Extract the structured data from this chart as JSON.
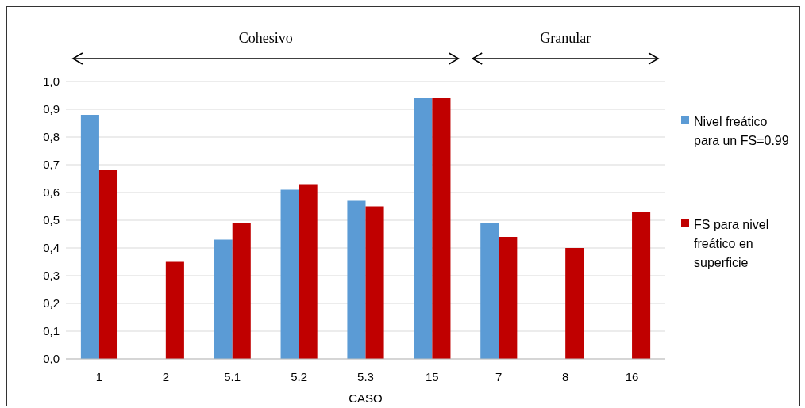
{
  "chart_data": {
    "type": "bar",
    "xlabel": "CASO",
    "categories": [
      "1",
      "2",
      "5.1",
      "5.2",
      "5.3",
      "15",
      "7",
      "8",
      "16"
    ],
    "series": [
      {
        "name": "Nivel freático para un FS=0.99",
        "color": "#5b9bd5",
        "values": [
          0.88,
          null,
          0.43,
          0.61,
          0.57,
          0.94,
          0.49,
          null,
          null
        ]
      },
      {
        "name": "FS para nivel freático en superficie",
        "color": "#c00000",
        "values": [
          0.68,
          0.35,
          0.49,
          0.63,
          0.55,
          0.94,
          0.44,
          0.4,
          0.53
        ]
      }
    ],
    "ylim": [
      0,
      1
    ],
    "yticks": [
      {
        "value": 0,
        "label": "0,0"
      },
      {
        "value": 0.1,
        "label": "0,1"
      },
      {
        "value": 0.2,
        "label": "0,2"
      },
      {
        "value": 0.3,
        "label": "0,3"
      },
      {
        "value": 0.4,
        "label": "0,4"
      },
      {
        "value": 0.5,
        "label": "0,5"
      },
      {
        "value": 0.6,
        "label": "0,6"
      },
      {
        "value": 0.7,
        "label": "0,7"
      },
      {
        "value": 0.8,
        "label": "0,8"
      },
      {
        "value": 0.9,
        "label": "0,9"
      },
      {
        "value": 1,
        "label": "1,0"
      }
    ],
    "grid": "y",
    "legend": "right",
    "annotations": [
      "Cohesivo",
      "Granular"
    ]
  }
}
